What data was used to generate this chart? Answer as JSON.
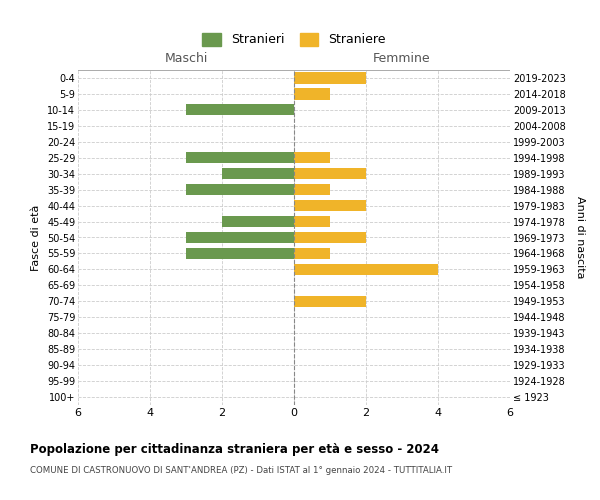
{
  "age_groups": [
    "100+",
    "95-99",
    "90-94",
    "85-89",
    "80-84",
    "75-79",
    "70-74",
    "65-69",
    "60-64",
    "55-59",
    "50-54",
    "45-49",
    "40-44",
    "35-39",
    "30-34",
    "25-29",
    "20-24",
    "15-19",
    "10-14",
    "5-9",
    "0-4"
  ],
  "birth_years": [
    "≤ 1923",
    "1924-1928",
    "1929-1933",
    "1934-1938",
    "1939-1943",
    "1944-1948",
    "1949-1953",
    "1954-1958",
    "1959-1963",
    "1964-1968",
    "1969-1973",
    "1974-1978",
    "1979-1983",
    "1984-1988",
    "1989-1993",
    "1994-1998",
    "1999-2003",
    "2004-2008",
    "2009-2013",
    "2014-2018",
    "2019-2023"
  ],
  "males": [
    0,
    0,
    0,
    0,
    0,
    0,
    0,
    0,
    0,
    3,
    3,
    2,
    0,
    3,
    2,
    3,
    0,
    0,
    3,
    0,
    0
  ],
  "females": [
    0,
    0,
    0,
    0,
    0,
    0,
    2,
    0,
    4,
    1,
    2,
    1,
    2,
    1,
    2,
    1,
    0,
    0,
    0,
    1,
    2
  ],
  "male_color": "#6a994e",
  "female_color": "#f0b429",
  "title": "Popolazione per cittadinanza straniera per età e sesso - 2024",
  "subtitle": "COMUNE DI CASTRONUOVO DI SANT'ANDREA (PZ) - Dati ISTAT al 1° gennaio 2024 - TUTTITALIA.IT",
  "legend_male": "Stranieri",
  "legend_female": "Straniere",
  "xlabel_left": "Maschi",
  "xlabel_right": "Femmine",
  "ylabel_left": "Fasce di età",
  "ylabel_right": "Anni di nascita",
  "xlim": 6,
  "background_color": "#ffffff",
  "grid_color": "#cccccc"
}
